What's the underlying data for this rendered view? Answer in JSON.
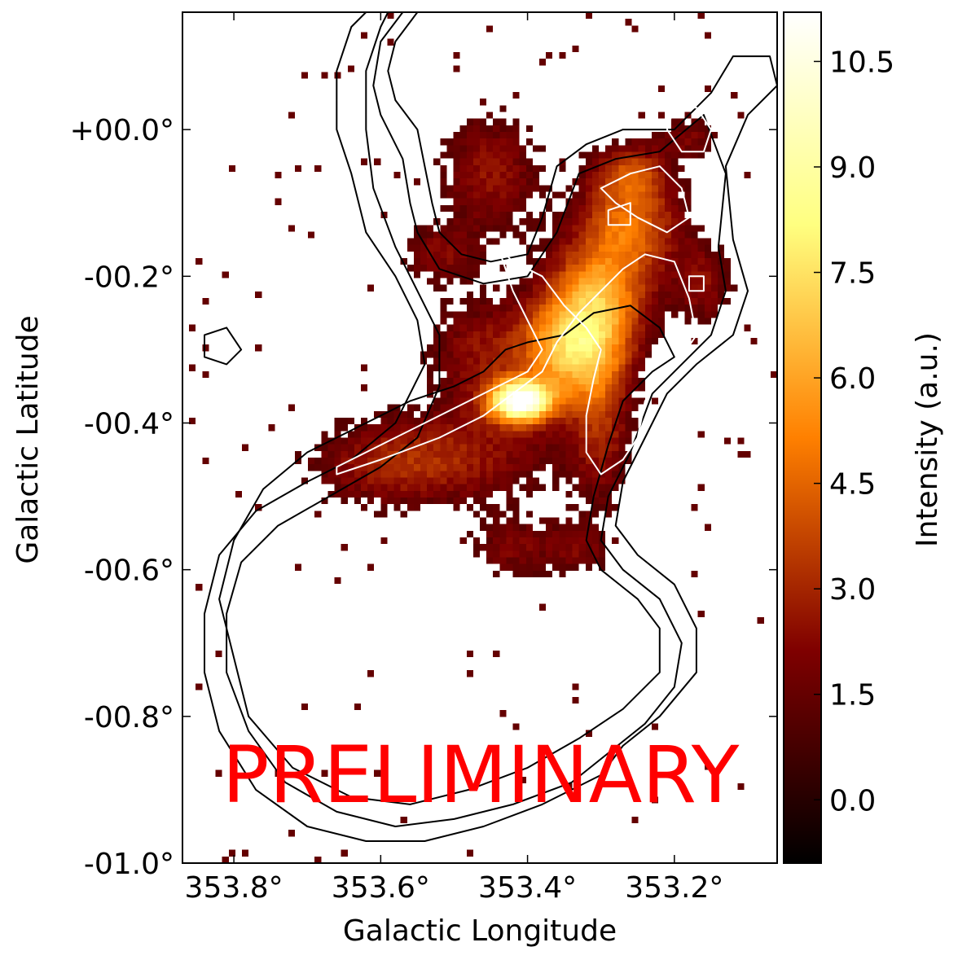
{
  "chart_data": {
    "type": "heatmap",
    "title": "",
    "xlabel": "Galactic Longitude",
    "ylabel": "Galactic Latitude",
    "x_ticks": [
      {
        "value": 353.8,
        "label": "353.8°"
      },
      {
        "value": 353.6,
        "label": "353.6°"
      },
      {
        "value": 353.4,
        "label": "353.4°"
      },
      {
        "value": 353.2,
        "label": "353.2°"
      }
    ],
    "y_ticks": [
      {
        "value": 0.0,
        "label": "+00.0°"
      },
      {
        "value": -0.2,
        "label": "-00.2°"
      },
      {
        "value": -0.4,
        "label": "-00.4°"
      },
      {
        "value": -0.6,
        "label": "-00.6°"
      },
      {
        "value": -0.8,
        "label": "-00.8°"
      },
      {
        "value": -1.0,
        "label": "-01.0°"
      }
    ],
    "xlim": [
      353.87,
      353.06
    ],
    "ylim": [
      -1.0,
      0.16
    ],
    "colorbar": {
      "label": "Intensity (a.u.)",
      "range": [
        -0.9,
        11.2
      ],
      "ticks": [
        {
          "value": 0.0,
          "label": "0.0"
        },
        {
          "value": 1.5,
          "label": "1.5"
        },
        {
          "value": 3.0,
          "label": "3.0"
        },
        {
          "value": 4.5,
          "label": "4.5"
        },
        {
          "value": 6.0,
          "label": "6.0"
        },
        {
          "value": 7.5,
          "label": "7.5"
        },
        {
          "value": 9.0,
          "label": "9.0"
        },
        {
          "value": 10.5,
          "label": "10.5"
        }
      ],
      "colormap": "afmhot"
    },
    "peak": {
      "l": 353.41,
      "b": -0.37,
      "intensity": 10.5
    },
    "emission_blobs": [
      {
        "l": 353.41,
        "b": -0.37,
        "intensity": 10.5,
        "sigma_l": 0.03,
        "sigma_b": 0.02
      },
      {
        "l": 353.34,
        "b": -0.3,
        "intensity": 6.5,
        "sigma_l": 0.05,
        "sigma_b": 0.05
      },
      {
        "l": 353.3,
        "b": -0.22,
        "intensity": 5.0,
        "sigma_l": 0.05,
        "sigma_b": 0.05
      },
      {
        "l": 353.26,
        "b": -0.13,
        "intensity": 4.0,
        "sigma_l": 0.05,
        "sigma_b": 0.04
      },
      {
        "l": 353.26,
        "b": -0.06,
        "intensity": 3.5,
        "sigma_l": 0.04,
        "sigma_b": 0.03
      },
      {
        "l": 353.3,
        "b": -0.4,
        "intensity": 2.5,
        "sigma_l": 0.03,
        "sigma_b": 0.08
      },
      {
        "l": 353.48,
        "b": -0.44,
        "intensity": 2.2,
        "sigma_l": 0.1,
        "sigma_b": 0.05
      },
      {
        "l": 353.6,
        "b": -0.46,
        "intensity": 2.0,
        "sigma_l": 0.08,
        "sigma_b": 0.04
      },
      {
        "l": 353.47,
        "b": -0.3,
        "intensity": 2.2,
        "sigma_l": 0.05,
        "sigma_b": 0.05
      },
      {
        "l": 353.45,
        "b": -0.06,
        "intensity": 2.5,
        "sigma_l": 0.05,
        "sigma_b": 0.06
      },
      {
        "l": 353.52,
        "b": -0.17,
        "intensity": 2.0,
        "sigma_l": 0.04,
        "sigma_b": 0.03
      },
      {
        "l": 353.42,
        "b": -0.57,
        "intensity": 2.0,
        "sigma_l": 0.04,
        "sigma_b": 0.03
      },
      {
        "l": 353.33,
        "b": -0.57,
        "intensity": 1.8,
        "sigma_l": 0.03,
        "sigma_b": 0.03
      },
      {
        "l": 353.16,
        "b": -0.21,
        "intensity": 2.2,
        "sigma_l": 0.03,
        "sigma_b": 0.04
      },
      {
        "l": 353.18,
        "b": -0.01,
        "intensity": 2.0,
        "sigma_l": 0.03,
        "sigma_b": 0.02
      }
    ],
    "contours": [
      {
        "level": "outer",
        "color": "#000000",
        "points": [
          [
            353.55,
            0.16
          ],
          [
            353.58,
            0.12
          ],
          [
            353.59,
            0.08
          ],
          [
            353.58,
            0.04
          ],
          [
            353.55,
            0.0
          ],
          [
            353.54,
            -0.05
          ],
          [
            353.53,
            -0.1
          ],
          [
            353.52,
            -0.14
          ],
          [
            353.49,
            -0.17
          ],
          [
            353.45,
            -0.18
          ],
          [
            353.4,
            -0.17
          ],
          [
            353.38,
            -0.12
          ],
          [
            353.36,
            -0.05
          ],
          [
            353.32,
            -0.02
          ],
          [
            353.27,
            0.0
          ],
          [
            353.2,
            0.0
          ],
          [
            353.15,
            0.05
          ],
          [
            353.12,
            0.1
          ],
          [
            353.07,
            0.1
          ],
          [
            353.06,
            0.06
          ],
          [
            353.1,
            0.02
          ],
          [
            353.13,
            -0.05
          ],
          [
            353.12,
            -0.15
          ],
          [
            353.1,
            -0.22
          ],
          [
            353.12,
            -0.28
          ],
          [
            353.17,
            -0.32
          ],
          [
            353.21,
            -0.36
          ],
          [
            353.24,
            -0.42
          ],
          [
            353.27,
            -0.48
          ],
          [
            353.28,
            -0.54
          ],
          [
            353.25,
            -0.58
          ],
          [
            353.2,
            -0.62
          ],
          [
            353.17,
            -0.68
          ],
          [
            353.17,
            -0.74
          ],
          [
            353.22,
            -0.8
          ],
          [
            353.27,
            -0.84
          ],
          [
            353.3,
            -0.88
          ],
          [
            353.38,
            -0.92
          ],
          [
            353.46,
            -0.95
          ],
          [
            353.54,
            -0.97
          ],
          [
            353.62,
            -0.97
          ],
          [
            353.7,
            -0.95
          ],
          [
            353.77,
            -0.9
          ],
          [
            353.82,
            -0.82
          ],
          [
            353.84,
            -0.74
          ],
          [
            353.84,
            -0.66
          ],
          [
            353.82,
            -0.58
          ],
          [
            353.77,
            -0.52
          ],
          [
            353.7,
            -0.48
          ],
          [
            353.64,
            -0.45
          ],
          [
            353.58,
            -0.4
          ],
          [
            353.54,
            -0.32
          ],
          [
            353.55,
            -0.26
          ],
          [
            353.58,
            -0.2
          ],
          [
            353.62,
            -0.14
          ],
          [
            353.64,
            -0.06
          ],
          [
            353.66,
            0.0
          ],
          [
            353.66,
            0.08
          ],
          [
            353.64,
            0.14
          ],
          [
            353.62,
            0.16
          ]
        ]
      },
      {
        "level": "middle",
        "color": "#000000",
        "points": [
          [
            353.57,
            0.16
          ],
          [
            353.6,
            0.12
          ],
          [
            353.61,
            0.06
          ],
          [
            353.6,
            0.02
          ],
          [
            353.57,
            -0.04
          ],
          [
            353.56,
            -0.1
          ],
          [
            353.55,
            -0.14
          ],
          [
            353.52,
            -0.19
          ],
          [
            353.46,
            -0.21
          ],
          [
            353.4,
            -0.2
          ],
          [
            353.36,
            -0.14
          ],
          [
            353.33,
            -0.06
          ],
          [
            353.28,
            -0.04
          ],
          [
            353.22,
            -0.03
          ],
          [
            353.16,
            0.02
          ],
          [
            353.13,
            -0.06
          ],
          [
            353.14,
            -0.16
          ],
          [
            353.13,
            -0.22
          ],
          [
            353.15,
            -0.28
          ],
          [
            353.19,
            -0.32
          ],
          [
            353.23,
            -0.36
          ],
          [
            353.26,
            -0.44
          ],
          [
            353.29,
            -0.5
          ],
          [
            353.3,
            -0.56
          ],
          [
            353.27,
            -0.6
          ],
          [
            353.22,
            -0.64
          ],
          [
            353.19,
            -0.7
          ],
          [
            353.2,
            -0.76
          ],
          [
            353.24,
            -0.81
          ],
          [
            353.29,
            -0.85
          ],
          [
            353.34,
            -0.89
          ],
          [
            353.42,
            -0.92
          ],
          [
            353.5,
            -0.94
          ],
          [
            353.58,
            -0.95
          ],
          [
            353.66,
            -0.93
          ],
          [
            353.73,
            -0.89
          ],
          [
            353.78,
            -0.82
          ],
          [
            353.81,
            -0.74
          ],
          [
            353.81,
            -0.66
          ],
          [
            353.79,
            -0.59
          ],
          [
            353.74,
            -0.54
          ],
          [
            353.67,
            -0.5
          ],
          [
            353.6,
            -0.46
          ],
          [
            353.55,
            -0.42
          ],
          [
            353.52,
            -0.35
          ],
          [
            353.52,
            -0.28
          ],
          [
            353.55,
            -0.22
          ],
          [
            353.58,
            -0.16
          ],
          [
            353.61,
            -0.08
          ],
          [
            353.62,
            0.0
          ],
          [
            353.62,
            0.08
          ],
          [
            353.6,
            0.14
          ],
          [
            353.59,
            0.16
          ]
        ]
      },
      {
        "level": "inner",
        "color": "#000000",
        "points": [
          [
            353.43,
            -0.3
          ],
          [
            353.46,
            -0.33
          ],
          [
            353.5,
            -0.35
          ],
          [
            353.56,
            -0.37
          ],
          [
            353.62,
            -0.4
          ],
          [
            353.7,
            -0.44
          ],
          [
            353.76,
            -0.49
          ],
          [
            353.8,
            -0.56
          ],
          [
            353.82,
            -0.64
          ],
          [
            353.8,
            -0.72
          ],
          [
            353.78,
            -0.8
          ],
          [
            353.72,
            -0.87
          ],
          [
            353.64,
            -0.91
          ],
          [
            353.56,
            -0.92
          ],
          [
            353.48,
            -0.9
          ],
          [
            353.4,
            -0.87
          ],
          [
            353.33,
            -0.83
          ],
          [
            353.27,
            -0.79
          ],
          [
            353.22,
            -0.74
          ],
          [
            353.22,
            -0.68
          ],
          [
            353.25,
            -0.64
          ],
          [
            353.3,
            -0.6
          ],
          [
            353.32,
            -0.56
          ],
          [
            353.31,
            -0.5
          ],
          [
            353.29,
            -0.43
          ],
          [
            353.27,
            -0.37
          ],
          [
            353.23,
            -0.33
          ],
          [
            353.2,
            -0.31
          ],
          [
            353.22,
            -0.27
          ],
          [
            353.26,
            -0.24
          ],
          [
            353.31,
            -0.25
          ],
          [
            353.35,
            -0.28
          ],
          [
            353.4,
            -0.29
          ]
        ]
      },
      {
        "level": "white-main",
        "color": "#ffffff",
        "points": [
          [
            353.66,
            -0.47
          ],
          [
            353.6,
            -0.45
          ],
          [
            353.52,
            -0.42
          ],
          [
            353.46,
            -0.39
          ],
          [
            353.42,
            -0.36
          ],
          [
            353.38,
            -0.33
          ],
          [
            353.36,
            -0.29
          ],
          [
            353.33,
            -0.25
          ],
          [
            353.3,
            -0.22
          ],
          [
            353.27,
            -0.19
          ],
          [
            353.24,
            -0.17
          ],
          [
            353.2,
            -0.18
          ],
          [
            353.18,
            -0.23
          ],
          [
            353.17,
            -0.28
          ],
          [
            353.19,
            -0.31
          ],
          [
            353.22,
            -0.34
          ],
          [
            353.24,
            -0.37
          ],
          [
            353.25,
            -0.42
          ],
          [
            353.27,
            -0.45
          ],
          [
            353.3,
            -0.47
          ],
          [
            353.32,
            -0.44
          ],
          [
            353.32,
            -0.39
          ],
          [
            353.31,
            -0.34
          ],
          [
            353.3,
            -0.3
          ],
          [
            353.32,
            -0.27
          ],
          [
            353.35,
            -0.24
          ],
          [
            353.38,
            -0.2
          ],
          [
            353.42,
            -0.18
          ],
          [
            353.44,
            -0.16
          ],
          [
            353.42,
            -0.22
          ],
          [
            353.4,
            -0.26
          ],
          [
            353.38,
            -0.3
          ],
          [
            353.4,
            -0.33
          ],
          [
            353.44,
            -0.35
          ],
          [
            353.48,
            -0.37
          ],
          [
            353.54,
            -0.4
          ],
          [
            353.6,
            -0.43
          ],
          [
            353.66,
            -0.46
          ]
        ]
      },
      {
        "level": "white-north",
        "color": "#ffffff",
        "points": [
          [
            353.3,
            -0.08
          ],
          [
            353.26,
            -0.06
          ],
          [
            353.22,
            -0.05
          ],
          [
            353.19,
            -0.08
          ],
          [
            353.18,
            -0.12
          ],
          [
            353.21,
            -0.14
          ],
          [
            353.25,
            -0.12
          ],
          [
            353.28,
            -0.1
          ]
        ]
      },
      {
        "level": "white-loop-ne",
        "color": "#ffffff",
        "points": [
          [
            353.2,
            0.03
          ],
          [
            353.17,
            0.03
          ],
          [
            353.15,
            0.0
          ],
          [
            353.16,
            -0.03
          ],
          [
            353.19,
            -0.03
          ],
          [
            353.21,
            -0.0
          ]
        ]
      },
      {
        "level": "white-small-1",
        "color": "#ffffff",
        "points": [
          [
            353.29,
            -0.11
          ],
          [
            353.26,
            -0.1
          ],
          [
            353.26,
            -0.13
          ],
          [
            353.29,
            -0.13
          ]
        ]
      },
      {
        "level": "white-small-2",
        "color": "#ffffff",
        "points": [
          [
            353.18,
            -0.2
          ],
          [
            353.16,
            -0.2
          ],
          [
            353.16,
            -0.22
          ],
          [
            353.18,
            -0.22
          ]
        ]
      },
      {
        "level": "small-west",
        "color": "#000000",
        "points": [
          [
            353.84,
            -0.28
          ],
          [
            353.81,
            -0.27
          ],
          [
            353.79,
            -0.3
          ],
          [
            353.81,
            -0.32
          ],
          [
            353.84,
            -0.31
          ]
        ]
      }
    ]
  },
  "watermark": "PRELIMINARY"
}
